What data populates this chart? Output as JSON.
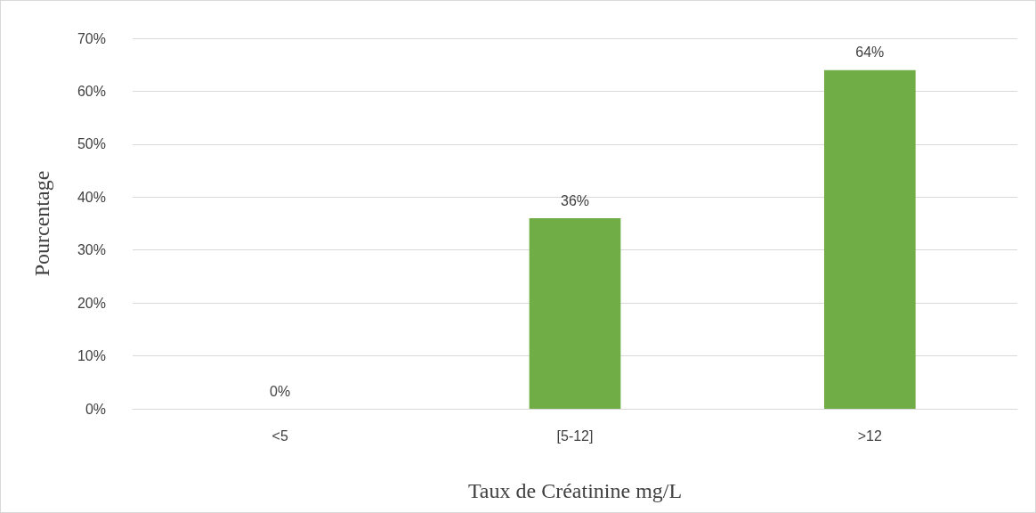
{
  "chart_data": {
    "type": "bar",
    "xlabel": "Taux de Créatinine mg/L",
    "ylabel": "Pourcentage",
    "categories": [
      "<5",
      "[5-12]",
      ">12"
    ],
    "values": [
      0,
      36,
      64
    ],
    "color": "#70ad47",
    "value_labels": [
      "0%",
      "36%",
      "64%"
    ],
    "ylim": [
      0,
      70
    ],
    "yticks": [
      {
        "value": 0,
        "label": "0%"
      },
      {
        "value": 10,
        "label": "10%"
      },
      {
        "value": 20,
        "label": "20%"
      },
      {
        "value": 30,
        "label": "30%"
      },
      {
        "value": 40,
        "label": "40%"
      },
      {
        "value": 50,
        "label": "50%"
      },
      {
        "value": 60,
        "label": "60%"
      },
      {
        "value": 70,
        "label": "70%"
      }
    ],
    "grid": "y"
  }
}
